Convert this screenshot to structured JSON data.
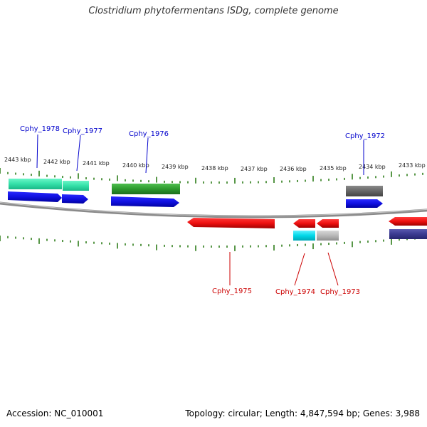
{
  "title": "Clostridium phytofermentans ISDg, complete genome",
  "footer": {
    "accession": "Accession: NC_010001",
    "summary": "Topology: circular; Length: 4,847,594 bp; Genes: 3,988"
  },
  "scale_labels": [
    "2443 kbp",
    "2442 kbp",
    "2441 kbp",
    "2440 kbp",
    "2439 kbp",
    "2438 kbp",
    "2437 kbp",
    "2436 kbp",
    "2435 kbp",
    "2434 kbp",
    "2433 kbp"
  ],
  "genes": [
    {
      "name": "Cphy_1978",
      "strand": "forward",
      "color": "#0000cc"
    },
    {
      "name": "Cphy_1977",
      "strand": "forward",
      "color": "#0000cc"
    },
    {
      "name": "Cphy_1976",
      "strand": "forward",
      "color": "#0000cc"
    },
    {
      "name": "Cphy_1972",
      "strand": "forward",
      "color": "#0000cc"
    },
    {
      "name": "Cphy_1975",
      "strand": "reverse",
      "color": "#cc0000"
    },
    {
      "name": "Cphy_1974",
      "strand": "reverse",
      "color": "#cc0000"
    },
    {
      "name": "Cphy_1973",
      "strand": "reverse",
      "color": "#cc0000"
    }
  ],
  "colors": {
    "backbone": "#888888",
    "ticks": "#2e7d1a",
    "forward_cds": "#1010ee",
    "reverse_cds": "#ee1010",
    "feature_teal": "#33e0a8",
    "feature_green": "#2d9a2d",
    "feature_gray": "#666666",
    "feature_cyan": "#00d8e8",
    "feature_lightgray": "#b8b8b8",
    "feature_navy": "#3a3a90"
  }
}
